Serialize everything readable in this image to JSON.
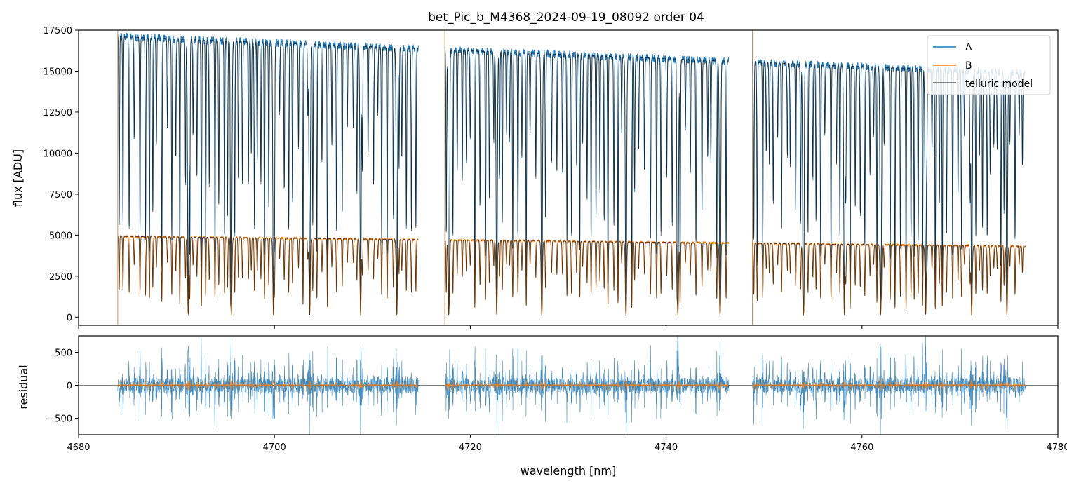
{
  "chart_data": [
    {
      "type": "line",
      "title": "bet_Pic_b_M4368_2024-09-19_08092  order 04",
      "xlabel": "",
      "ylabel": "flux [ADU]",
      "xlim": [
        4680,
        4780
      ],
      "ylim": [
        -500,
        17500
      ],
      "yticks": [
        0,
        2500,
        5000,
        7500,
        10000,
        12500,
        15000,
        17500
      ],
      "legend": {
        "placement": "top-right",
        "entries": [
          "A",
          "B",
          "telluric model"
        ]
      },
      "grid": false,
      "segments_nm": [
        [
          4684.0,
          4714.7
        ],
        [
          4717.4,
          4746.4
        ],
        [
          4748.8,
          4776.7
        ]
      ],
      "series": [
        {
          "name": "A",
          "color": "#1f77b4",
          "continuum_start": 17200,
          "continuum_end": 14800,
          "absorption_depth": 0.85
        },
        {
          "name": "B",
          "color": "#ff7f0e",
          "continuum_start": 4950,
          "continuum_end": 4300,
          "absorption_depth": 0.85
        },
        {
          "name": "telluric model",
          "color": "#000000",
          "note_visible": ""
        }
      ],
      "strong_lines_nm": [
        4691.2,
        4695.6,
        4699.9,
        4703.6,
        4708.8,
        4712.5,
        4717.8,
        4722.7,
        4727.3,
        4735.9,
        4741.2,
        4745.5,
        4754.0,
        4758.2,
        4761.9,
        4766.5,
        4771.2,
        4774.8
      ]
    },
    {
      "type": "line",
      "title": "",
      "xlabel": "wavelength [nm]",
      "ylabel": "residual",
      "xlim": [
        4680,
        4780
      ],
      "ylim": [
        -750,
        750
      ],
      "xticks": [
        4680,
        4700,
        4720,
        4740,
        4760,
        4780
      ],
      "yticks": [
        -500,
        0,
        500
      ],
      "zero_line": true,
      "series": [
        {
          "name": "A",
          "color": "#1f77b4",
          "amplitude": 450
        },
        {
          "name": "B",
          "color": "#ff7f0e",
          "amplitude": 60
        }
      ]
    }
  ]
}
